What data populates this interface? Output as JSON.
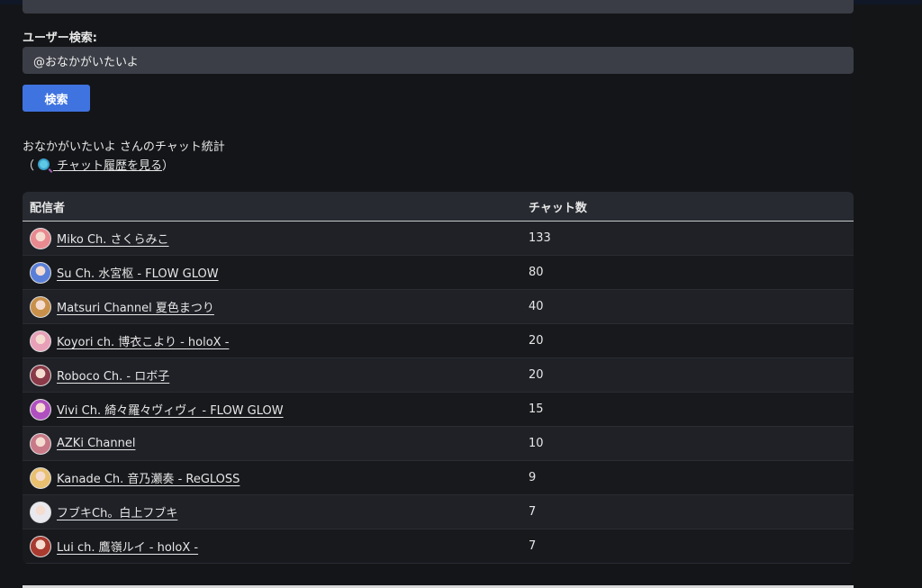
{
  "search": {
    "label": "ユーザー検索:",
    "value": "@おなかがいたいよ",
    "button": "検索"
  },
  "stats": {
    "title": "おなかがいたいよ さんのチャット統計",
    "open_paren": "（",
    "history_link": "チャット履歴を見る",
    "close_paren": "）",
    "link_icon": "magnifier-icon"
  },
  "table": {
    "headers": [
      "配信者",
      "チャット数"
    ],
    "rows": [
      {
        "name": "Miko Ch. さくらみこ",
        "count": "133",
        "avatar_color": "#e88a90"
      },
      {
        "name": "Su Ch. 水宮枢 - FLOW GLOW",
        "count": "80",
        "avatar_color": "#5a7fd8"
      },
      {
        "name": "Matsuri Channel 夏色まつり",
        "count": "40",
        "avatar_color": "#c8904a"
      },
      {
        "name": "Koyori ch. 博衣こより - holoX -",
        "count": "20",
        "avatar_color": "#e8a0b8"
      },
      {
        "name": "Roboco Ch. - ロボ子",
        "count": "20",
        "avatar_color": "#8a3a48"
      },
      {
        "name": "Vivi Ch. 綺々羅々ヴィヴィ - FLOW GLOW",
        "count": "15",
        "avatar_color": "#b050c0"
      },
      {
        "name": "AZKi Channel",
        "count": "10",
        "avatar_color": "#c87a88"
      },
      {
        "name": "Kanade Ch. 音乃瀬奏 ‐ ReGLOSS",
        "count": "9",
        "avatar_color": "#e8c070"
      },
      {
        "name": "フブキCh。白上フブキ",
        "count": "7",
        "avatar_color": "#e8e8ee"
      },
      {
        "name": "Lui ch. 鷹嶺ルイ - holoX -",
        "count": "7",
        "avatar_color": "#a83a30"
      }
    ]
  }
}
